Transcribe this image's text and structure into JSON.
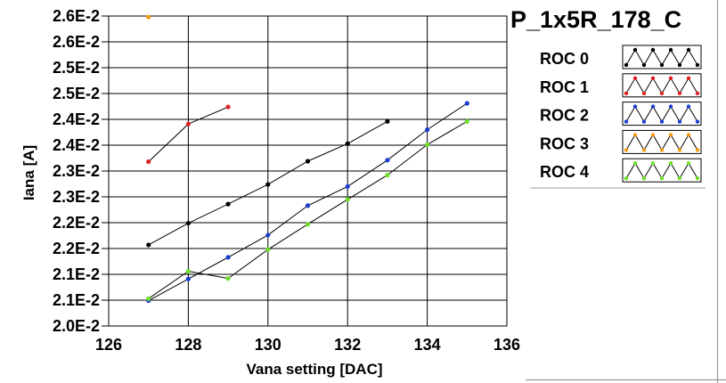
{
  "chart_data": {
    "type": "line",
    "title": "P_1x5R_178_C",
    "xlabel": "Vana setting [DAC]",
    "ylabel": "Iana [A]",
    "xlim": [
      126,
      136
    ],
    "ylim": [
      0.02,
      0.026
    ],
    "x_ticks": [
      126,
      128,
      130,
      132,
      134,
      136
    ],
    "x_tick_labels": [
      "126",
      "128",
      "130",
      "132",
      "134",
      "136"
    ],
    "y_ticks": [
      0.02,
      0.0205,
      0.021,
      0.0215,
      0.022,
      0.0225,
      0.023,
      0.0235,
      0.024,
      0.0245,
      0.025,
      0.0255,
      0.026
    ],
    "y_tick_labels": [
      "2.0E-2",
      "2.1E-2",
      "2.1E-2",
      "2.2E-2",
      "2.2E-2",
      "2.3E-2",
      "2.3E-2",
      "2.4E-2",
      "2.4E-2",
      "2.5E-2",
      "2.5E-2",
      "2.6E-2",
      "2.6E-2"
    ],
    "grid": true,
    "legend_position": "right",
    "series": [
      {
        "name": "ROC 0",
        "color": "#000000",
        "x": [
          127,
          128,
          129,
          130,
          131,
          132,
          133
        ],
        "y": [
          0.02157,
          0.02199,
          0.02236,
          0.02274,
          0.02319,
          0.02353,
          0.02396
        ]
      },
      {
        "name": "ROC 1",
        "color": "#e02020",
        "x": [
          127,
          128,
          129
        ],
        "y": [
          0.02318,
          0.02391,
          0.02424
        ]
      },
      {
        "name": "ROC 2",
        "color": "#1a3fd0",
        "x": [
          127,
          128,
          129,
          130,
          131,
          132,
          133,
          134,
          135
        ],
        "y": [
          0.02049,
          0.02091,
          0.02133,
          0.02176,
          0.02233,
          0.0227,
          0.02321,
          0.0238,
          0.02431
        ]
      },
      {
        "name": "ROC 3",
        "color": "#f39c12",
        "x": [
          127
        ],
        "y": [
          0.02598
        ]
      },
      {
        "name": "ROC 4",
        "color": "#6ee02a",
        "x": [
          127,
          128,
          129,
          130,
          131,
          132,
          133,
          134,
          135
        ],
        "y": [
          0.02053,
          0.02106,
          0.02092,
          0.02148,
          0.02197,
          0.02245,
          0.02292,
          0.02351,
          0.02396
        ]
      }
    ]
  }
}
